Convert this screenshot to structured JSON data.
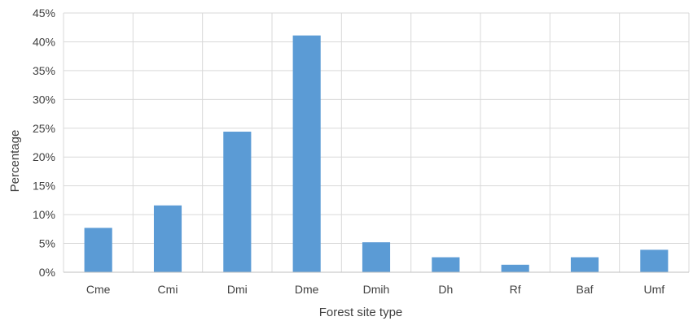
{
  "chart_data": {
    "type": "bar",
    "title": "",
    "xlabel": "Forest site type",
    "ylabel": "Percentage",
    "categories": [
      "Cme",
      "Cmi",
      "Dmi",
      "Dme",
      "Dmih",
      "Dh",
      "Rf",
      "Baf",
      "Umf"
    ],
    "values": [
      7.7,
      11.6,
      24.4,
      41.1,
      5.2,
      2.6,
      1.3,
      2.6,
      3.9
    ],
    "ylim": [
      0,
      45
    ],
    "yticks": [
      0,
      5,
      10,
      15,
      20,
      25,
      30,
      35,
      40,
      45
    ],
    "ytick_labels": [
      "0%",
      "5%",
      "10%",
      "15%",
      "20%",
      "25%",
      "30%",
      "35%",
      "40%",
      "45%"
    ],
    "bar_color": "#5b9bd5",
    "grid": true,
    "vertical_grid": true,
    "legend": "none"
  }
}
